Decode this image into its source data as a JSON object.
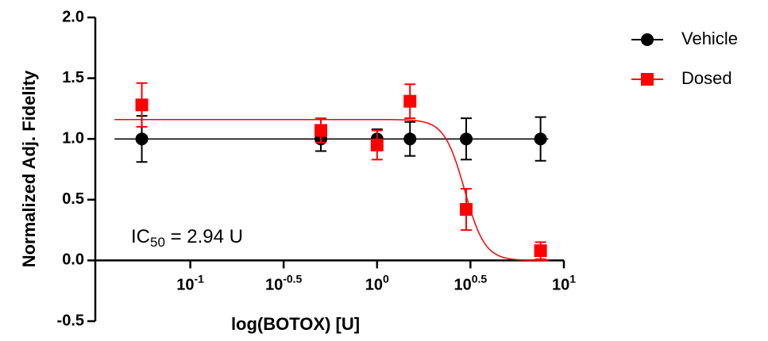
{
  "chart_data": {
    "type": "dose-response",
    "x_label": "log(BOTOX) [U]",
    "y_label": "Normalized Adj. Fidelity",
    "x_log": true,
    "xlim": [
      0.031,
      10
    ],
    "xticks": [
      {
        "value": 0.1,
        "label": "10",
        "exponent": "-1"
      },
      {
        "value": 0.316,
        "label": "10",
        "exponent": "-0.5"
      },
      {
        "value": 1,
        "label": "10",
        "exponent": "0"
      },
      {
        "value": 3.16,
        "label": "10",
        "exponent": "0.5"
      },
      {
        "value": 10,
        "label": "10",
        "exponent": "1"
      }
    ],
    "ylim": [
      -0.5,
      2.0
    ],
    "yticks": [
      {
        "value": -0.5,
        "label": "-0.5"
      },
      {
        "value": 0,
        "label": "0.0"
      },
      {
        "value": 0.5,
        "label": "0.5"
      },
      {
        "value": 1,
        "label": "1.0"
      },
      {
        "value": 1.5,
        "label": "1.5"
      },
      {
        "value": 2,
        "label": "2.0"
      }
    ],
    "x": [
      0.055,
      0.5,
      1,
      1.5,
      3,
      7.5
    ],
    "series": [
      {
        "name": "Vehicle",
        "color": "#000000",
        "marker": "circle",
        "values": [
          1.0,
          1.0,
          1.0,
          1.0,
          1.0,
          1.0
        ],
        "errors": [
          0.19,
          0.1,
          0.08,
          0.14,
          0.17,
          0.18
        ],
        "fit": {
          "top": 1.0,
          "bottom": 1.0,
          "ic50": 2.94,
          "hill": 8
        }
      },
      {
        "name": "Dosed",
        "color": "#ff0000",
        "marker": "square",
        "values": [
          1.28,
          1.07,
          0.95,
          1.31,
          0.42,
          0.08
        ],
        "errors": [
          0.18,
          0.1,
          0.12,
          0.14,
          0.17,
          0.07
        ],
        "fit": {
          "top": 1.16,
          "bottom": 0.0,
          "ic50": 2.94,
          "hill": 8
        }
      }
    ],
    "annotation": {
      "prefix": "IC",
      "subscript": "50",
      "suffix": " = 2.94 U"
    },
    "legend": "right"
  }
}
